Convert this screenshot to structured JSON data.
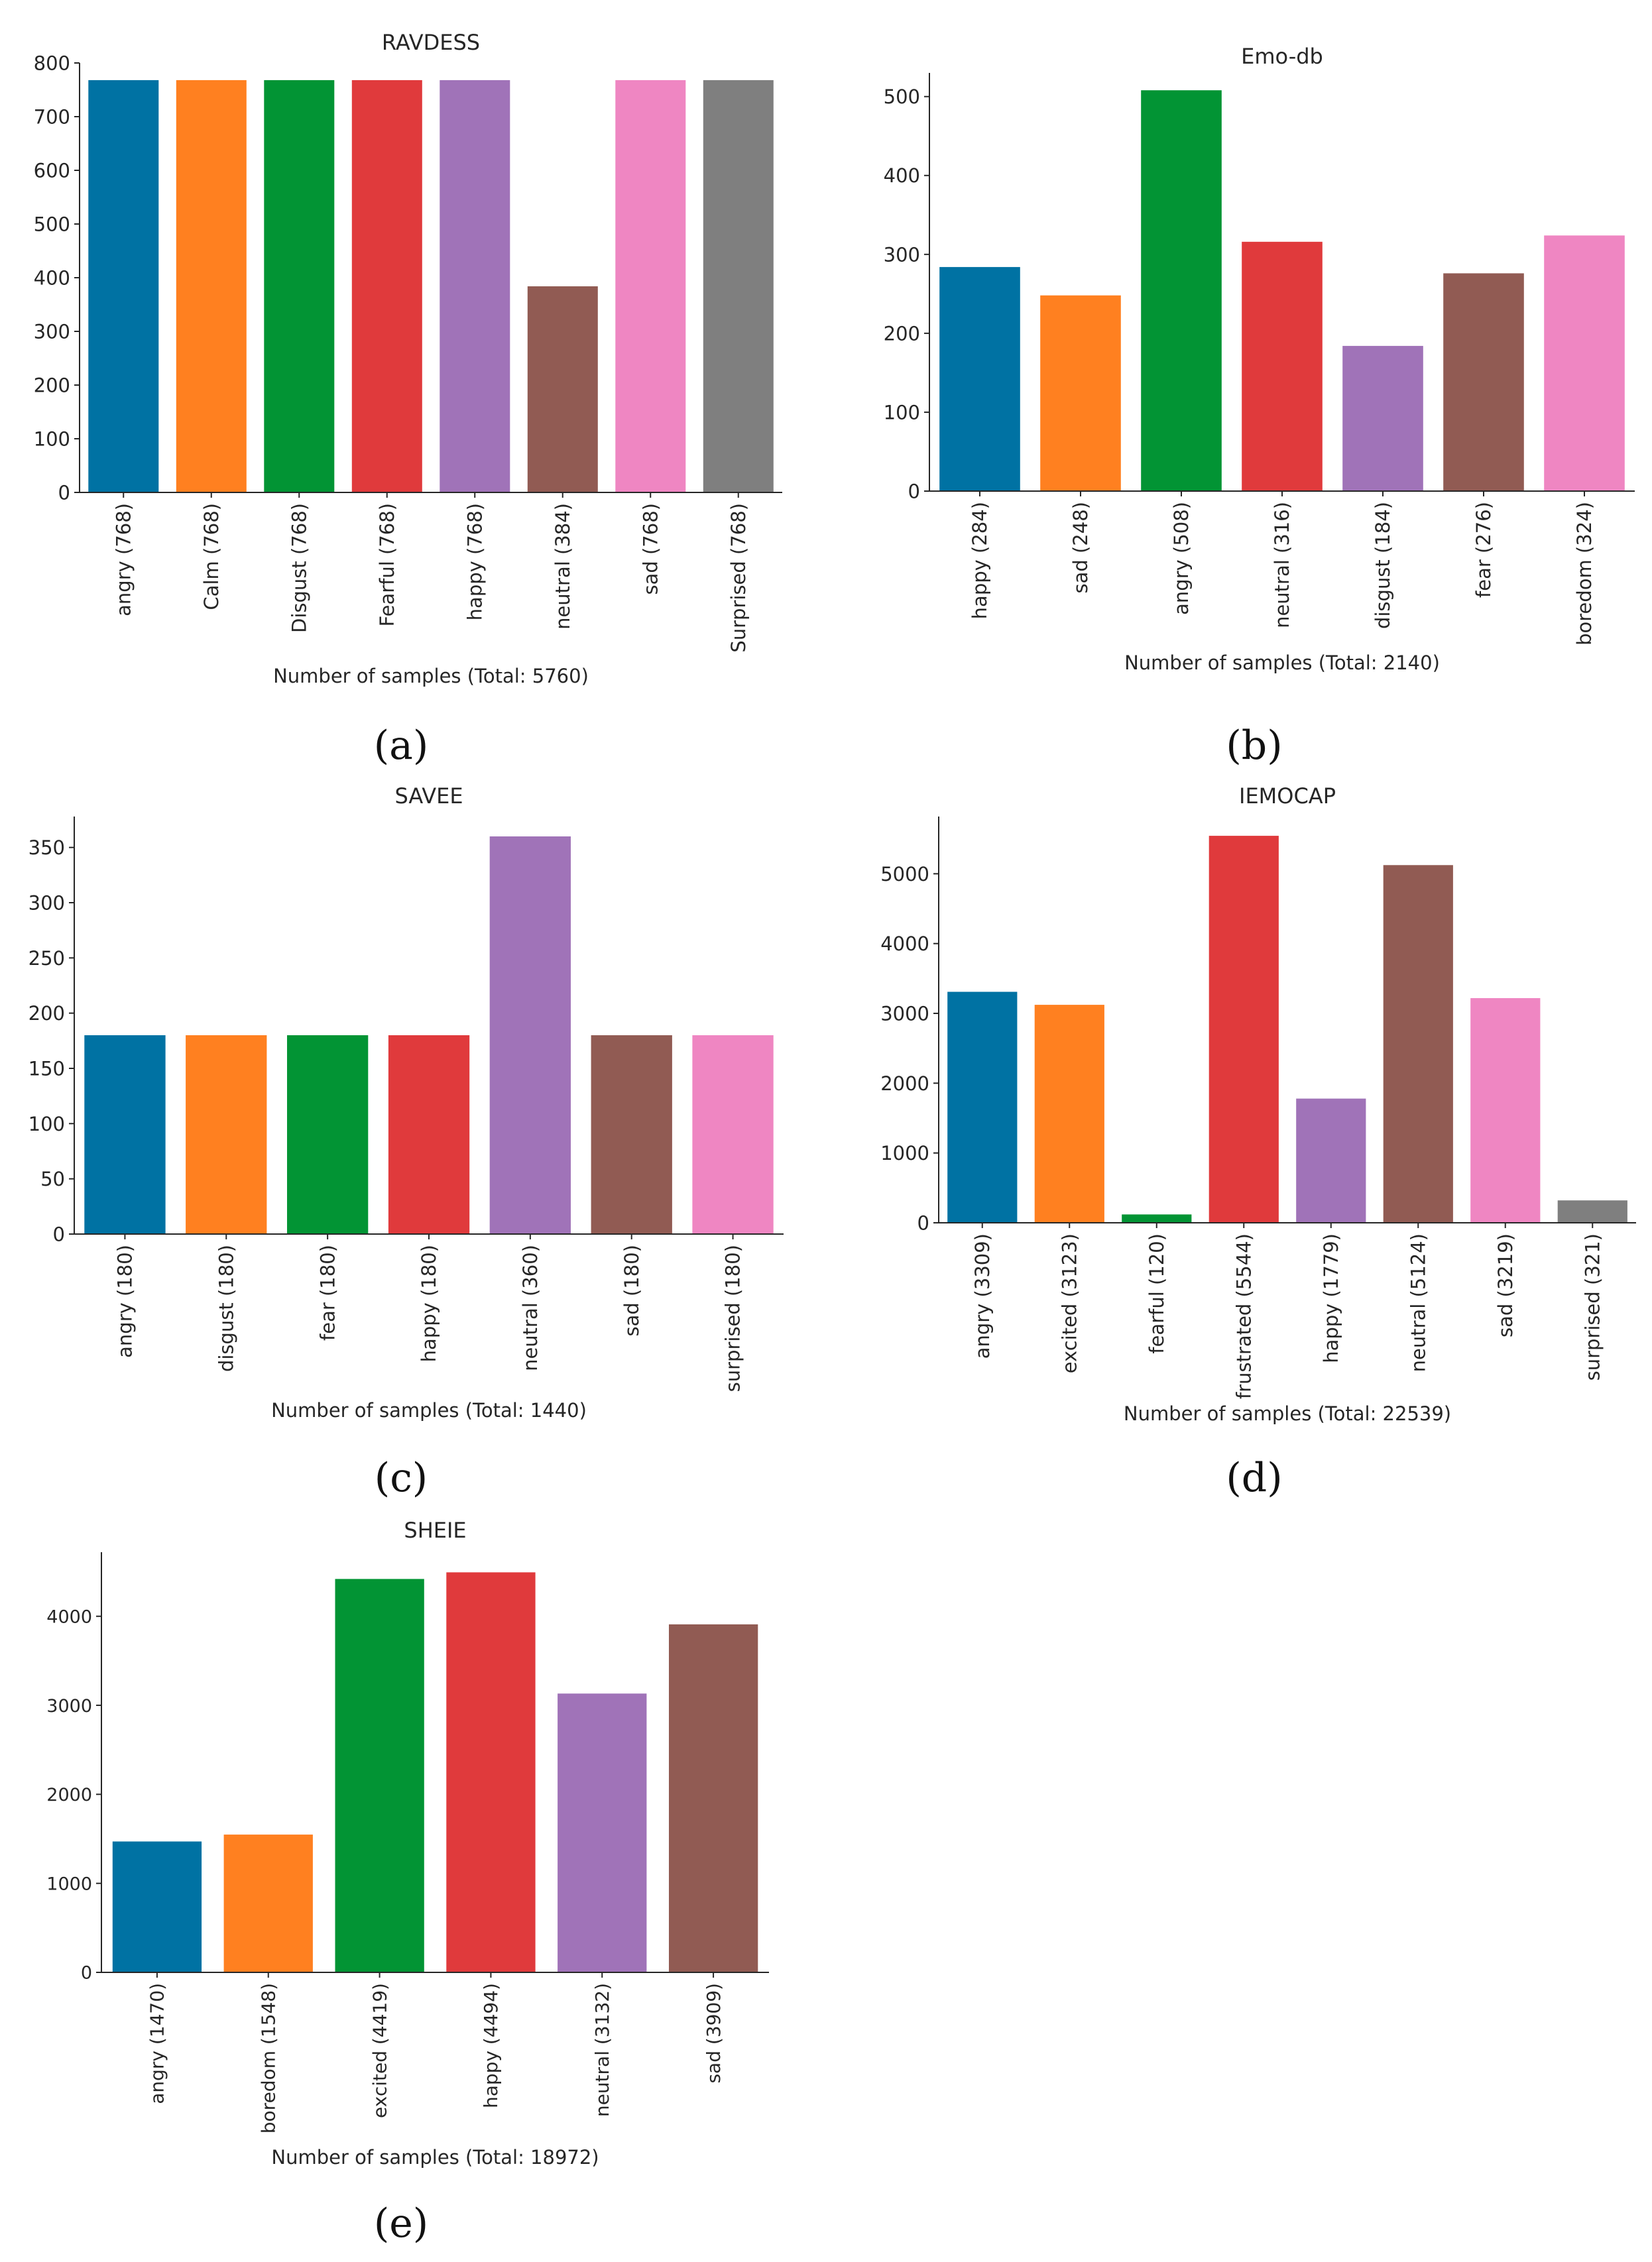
{
  "chart_data": [
    {
      "type": "bar",
      "title": "RAVDESS",
      "panel_label": "(a)",
      "xlabel": "Number of samples (Total: 5760)",
      "ylabel": "",
      "ylim": [
        0,
        800
      ],
      "yticks": [
        0,
        100,
        200,
        300,
        400,
        500,
        600,
        700,
        800
      ],
      "categories": [
        "angry (768)",
        "Calm (768)",
        "Disgust (768)",
        "Fearful (768)",
        "happy (768)",
        "neutral (384)",
        "sad (768)",
        "Surprised (768)"
      ],
      "values": [
        768,
        768,
        768,
        768,
        768,
        384,
        768,
        768
      ],
      "colors": [
        "#0072a3",
        "#ff8020",
        "#029434",
        "#e03a3c",
        "#a073b8",
        "#915b53",
        "#ef86c2",
        "#7f7f7f"
      ],
      "grid": false,
      "legend": "none"
    },
    {
      "type": "bar",
      "title": "Emo-db",
      "panel_label": "(b)",
      "xlabel": "Number of samples (Total: 2140)",
      "ylabel": "",
      "ylim": [
        0,
        530
      ],
      "yticks": [
        0,
        100,
        200,
        300,
        400,
        500
      ],
      "categories": [
        "happy (284)",
        "sad (248)",
        "angry (508)",
        "neutral (316)",
        "disgust (184)",
        "fear (276)",
        "boredom (324)"
      ],
      "values": [
        284,
        248,
        508,
        316,
        184,
        276,
        324
      ],
      "colors": [
        "#0072a3",
        "#ff8020",
        "#029434",
        "#e03a3c",
        "#a073b8",
        "#915b53",
        "#ef86c2"
      ],
      "grid": false,
      "legend": "none"
    },
    {
      "type": "bar",
      "title": "SAVEE",
      "panel_label": "(c)",
      "xlabel": "Number of samples (Total: 1440)",
      "ylabel": "",
      "ylim": [
        0,
        378
      ],
      "yticks": [
        0,
        50,
        100,
        150,
        200,
        250,
        300,
        350
      ],
      "categories": [
        "angry (180)",
        "disgust (180)",
        "fear (180)",
        "happy (180)",
        "neutral (360)",
        "sad (180)",
        "surprised (180)"
      ],
      "values": [
        180,
        180,
        180,
        180,
        360,
        180,
        180
      ],
      "colors": [
        "#0072a3",
        "#ff8020",
        "#029434",
        "#e03a3c",
        "#a073b8",
        "#915b53",
        "#ef86c2"
      ],
      "grid": false,
      "legend": "none"
    },
    {
      "type": "bar",
      "title": "IEMOCAP",
      "panel_label": "(d)",
      "xlabel": "Number of samples (Total: 22539)",
      "ylabel": "",
      "ylim": [
        0,
        5820
      ],
      "yticks": [
        0,
        1000,
        2000,
        3000,
        4000,
        5000
      ],
      "categories": [
        "angry (3309)",
        "excited (3123)",
        "fearful (120)",
        "frustrated (5544)",
        "happy (1779)",
        "neutral (5124)",
        "sad (3219)",
        "surprised (321)"
      ],
      "values": [
        3309,
        3123,
        120,
        5544,
        1779,
        5124,
        3219,
        321
      ],
      "colors": [
        "#0072a3",
        "#ff8020",
        "#029434",
        "#e03a3c",
        "#a073b8",
        "#915b53",
        "#ef86c2",
        "#7f7f7f"
      ],
      "grid": false,
      "legend": "none"
    },
    {
      "type": "bar",
      "title": "SHEIE",
      "panel_label": "(e)",
      "xlabel": "Number of samples (Total: 18972)",
      "ylabel": "",
      "ylim": [
        0,
        4720
      ],
      "yticks": [
        0,
        1000,
        2000,
        3000,
        4000
      ],
      "categories": [
        "angry (1470)",
        "boredom (1548)",
        "excited (4419)",
        "happy (4494)",
        "neutral (3132)",
        "sad (3909)"
      ],
      "values": [
        1470,
        1548,
        4419,
        4494,
        3132,
        3909
      ],
      "colors": [
        "#0072a3",
        "#ff8020",
        "#029434",
        "#e03a3c",
        "#a073b8",
        "#915b53"
      ],
      "grid": false,
      "legend": "none"
    }
  ]
}
